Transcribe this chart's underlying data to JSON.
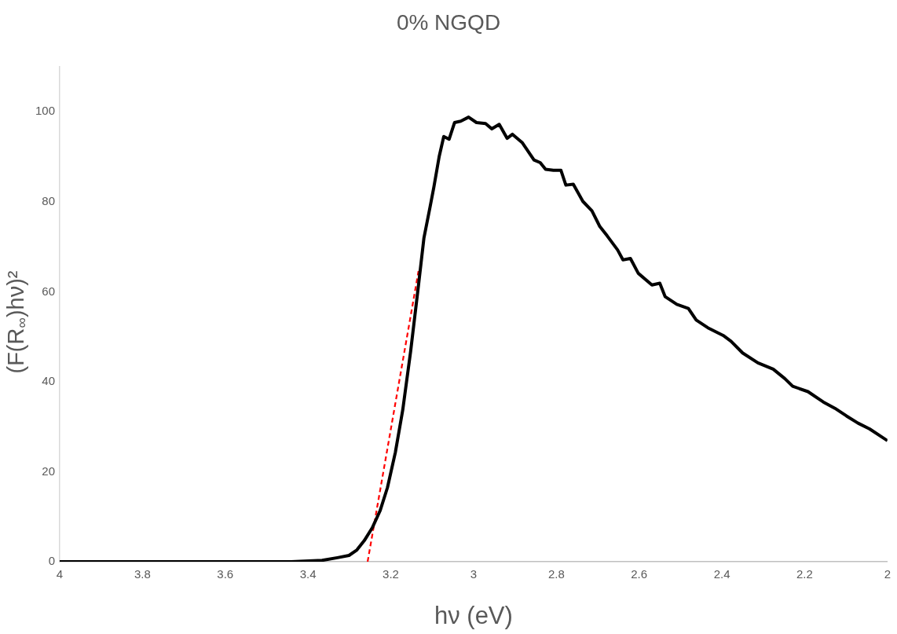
{
  "chart_data": {
    "type": "line",
    "title": "0% NGQD",
    "xlabel": "hν (eV)",
    "ylabel": "(F(R$_{∞}$)hν)²",
    "xlim": [
      4,
      2
    ],
    "xticks": [
      4,
      3.8,
      3.6,
      3.4,
      3.2,
      3,
      2.8,
      2.6,
      2.4,
      2.2,
      2
    ],
    "ylim": [
      0,
      110
    ],
    "yticks": [
      0,
      20,
      40,
      60,
      80,
      100
    ],
    "grid": false,
    "legend": false,
    "marker": "none",
    "series": [
      {
        "color": "#000000",
        "line_style": "solid",
        "x": [
          4,
          3.441,
          3.366,
          3.329,
          3.301,
          3.282,
          3.264,
          3.245,
          3.226,
          3.208,
          3.189,
          3.171,
          3.152,
          3.133,
          3.12,
          3.105,
          3.096,
          3.083,
          3.072,
          3.059,
          3.046,
          3.031,
          3.012,
          2.993,
          2.971,
          2.956,
          2.938,
          2.919,
          2.906,
          2.882,
          2.854,
          2.839,
          2.826,
          2.807,
          2.789,
          2.777,
          2.759,
          2.736,
          2.714,
          2.695,
          2.677,
          2.652,
          2.639,
          2.621,
          2.602,
          2.569,
          2.55,
          2.537,
          2.509,
          2.481,
          2.462,
          2.434,
          2.397,
          2.378,
          2.35,
          2.313,
          2.276,
          2.248,
          2.229,
          2.192,
          2.155,
          2.127,
          2.099,
          2.071,
          2.043,
          2.0
        ],
        "values": [
          0,
          0,
          0.3,
          0.9,
          1.4,
          2.6,
          4.7,
          7.5,
          11.3,
          16.5,
          24.3,
          33.8,
          46.8,
          61.5,
          71.9,
          78.9,
          83.2,
          90.1,
          94.5,
          93.9,
          97.6,
          97.9,
          98.8,
          97.6,
          97.4,
          96.2,
          97.2,
          94.1,
          95.0,
          93.1,
          89.3,
          88.7,
          87.2,
          87.0,
          87.0,
          83.7,
          83.9,
          80.1,
          78.0,
          74.5,
          72.4,
          69.3,
          67.1,
          67.4,
          64.1,
          61.5,
          61.9,
          58.9,
          57.2,
          56.3,
          53.7,
          52.0,
          50.3,
          49.0,
          46.4,
          44.2,
          42.8,
          40.7,
          39.0,
          37.8,
          35.5,
          34.1,
          32.4,
          30.8,
          29.5,
          26.9
        ]
      },
      {
        "color": "#ff0000",
        "line_style": "dashed",
        "x": [
          3.256,
          3.133
        ],
        "values": [
          0,
          64.6
        ]
      }
    ]
  }
}
